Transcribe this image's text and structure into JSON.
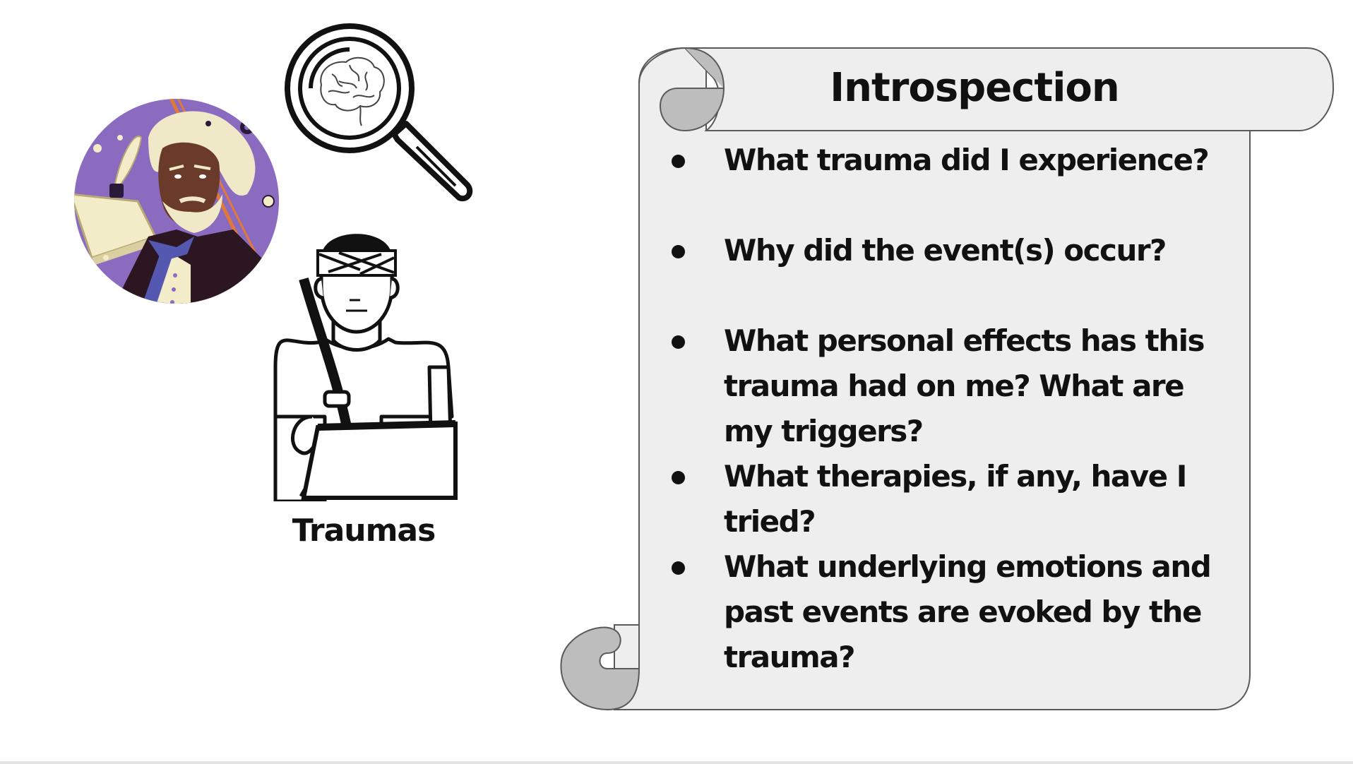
{
  "scroll": {
    "title": "Introspection",
    "bullets": [
      "What trauma did I experience?",
      "Why did the event(s) occur?",
      "What personal effects has this trauma had on me? What are my triggers?",
      "What therapies, if any, have I tried?",
      "What underlying emotions and past events are evoked by the trauma?"
    ]
  },
  "illustrations": {
    "caption": "Traumas",
    "icons": [
      "portrait-icon",
      "magnifying-glass-brain-icon",
      "injured-person-icon"
    ]
  },
  "colors": {
    "scroll_fill": "#eeeeee",
    "scroll_curl": "#bdbdbd",
    "scroll_stroke": "#5a5a5a",
    "portrait_bg": "#8b6bc0",
    "text": "#111111"
  }
}
